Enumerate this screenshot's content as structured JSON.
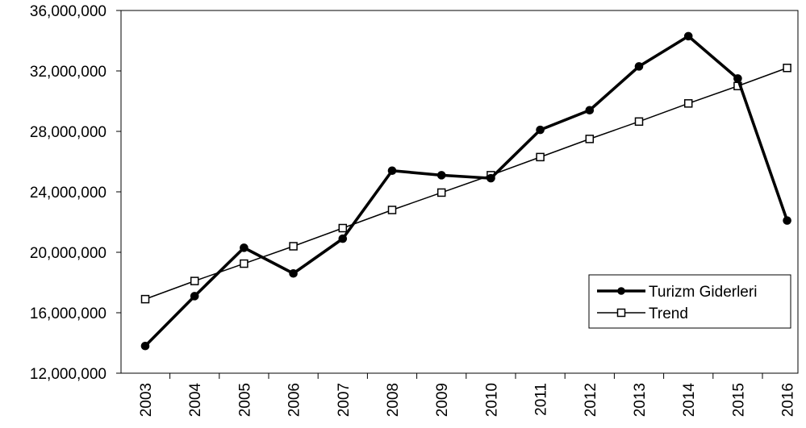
{
  "chart_data": {
    "type": "line",
    "title": "",
    "xlabel": "",
    "ylabel": "",
    "categories": [
      "2003",
      "2004",
      "2005",
      "2006",
      "2007",
      "2008",
      "2009",
      "2010",
      "2011",
      "2012",
      "2013",
      "2014",
      "2015",
      "2016"
    ],
    "ylim": [
      12000000,
      36000000
    ],
    "yticks": [
      12000000,
      16000000,
      20000000,
      24000000,
      28000000,
      32000000,
      36000000
    ],
    "ytick_labels": [
      "12,000,000",
      "16,000,000",
      "20,000,000",
      "24,000,000",
      "28,000,000",
      "32,000,000",
      "36,000,000"
    ],
    "grid": false,
    "legend_position": "bottom-right",
    "series": [
      {
        "name": "Turizm Giderleri",
        "marker": "filled-circle",
        "line_style": "thick",
        "color": "#000000",
        "values": [
          13800000,
          17100000,
          20300000,
          18600000,
          20900000,
          25400000,
          25100000,
          24900000,
          28100000,
          29400000,
          32300000,
          34300000,
          31500000,
          22100000
        ]
      },
      {
        "name": "Trend",
        "marker": "open-square",
        "line_style": "thin",
        "color": "#000000",
        "values": [
          16900000,
          18100000,
          19250000,
          20400000,
          21600000,
          22800000,
          23950000,
          25100000,
          26300000,
          27500000,
          28650000,
          29850000,
          31000000,
          32200000
        ]
      }
    ]
  }
}
